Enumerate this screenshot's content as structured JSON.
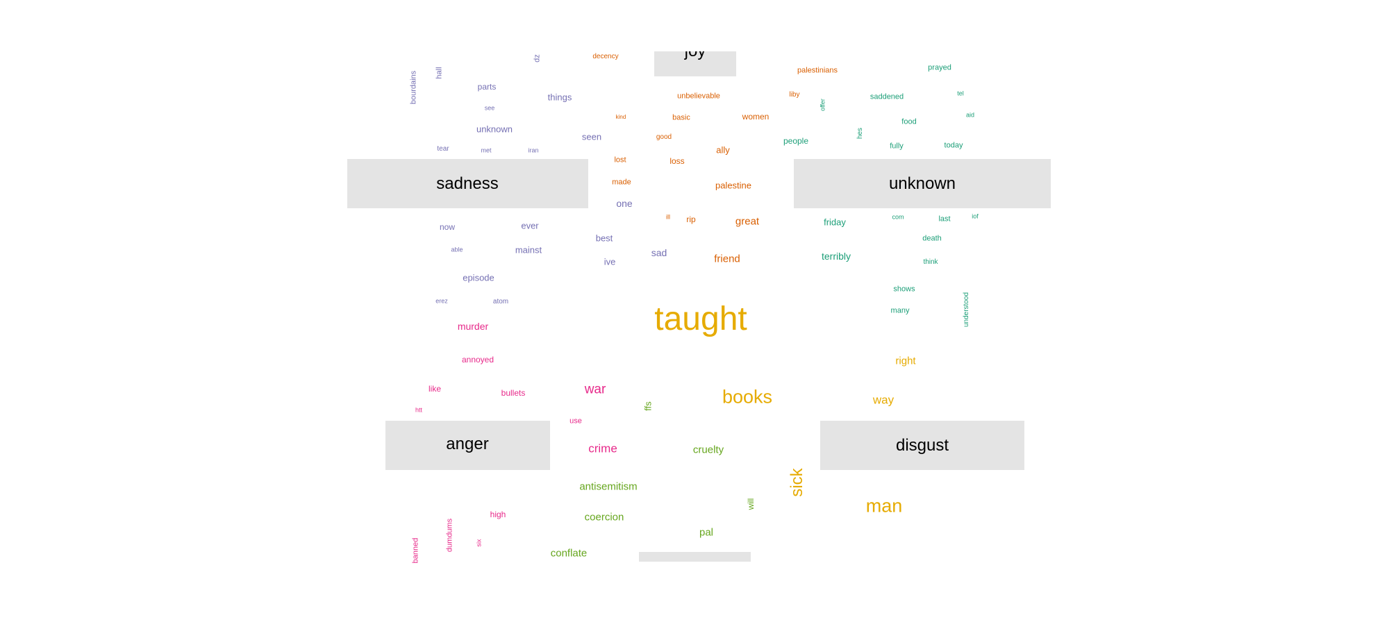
{
  "colors": {
    "sadness": "#7570b3",
    "joy": "#d95f02",
    "unknown": "#1b9e77",
    "anger": "#e7298a",
    "disgust": "#e6ab02",
    "fear": "#66a61e",
    "panel": "#e4e4e4"
  },
  "panels": [
    {
      "id": "joy",
      "label": "joy"
    },
    {
      "id": "sadness",
      "label": "sadness"
    },
    {
      "id": "unknown",
      "label": "unknown"
    },
    {
      "id": "anger",
      "label": "anger"
    },
    {
      "id": "disgust",
      "label": "disgust"
    },
    {
      "id": "fear",
      "label": ""
    }
  ],
  "words": [
    {
      "text": "dz",
      "group": "sadness"
    },
    {
      "text": "bourdains",
      "group": "sadness"
    },
    {
      "text": "hall",
      "group": "sadness"
    },
    {
      "text": "parts",
      "group": "sadness"
    },
    {
      "text": "things",
      "group": "sadness"
    },
    {
      "text": "see",
      "group": "sadness"
    },
    {
      "text": "unknown",
      "group": "sadness"
    },
    {
      "text": "seen",
      "group": "sadness"
    },
    {
      "text": "tear",
      "group": "sadness"
    },
    {
      "text": "met",
      "group": "sadness"
    },
    {
      "text": "iran",
      "group": "sadness"
    },
    {
      "text": "one",
      "group": "sadness"
    },
    {
      "text": "now",
      "group": "sadness"
    },
    {
      "text": "ever",
      "group": "sadness"
    },
    {
      "text": "best",
      "group": "sadness"
    },
    {
      "text": "able",
      "group": "sadness"
    },
    {
      "text": "mainst",
      "group": "sadness"
    },
    {
      "text": "sad",
      "group": "sadness"
    },
    {
      "text": "ive",
      "group": "sadness"
    },
    {
      "text": "episode",
      "group": "sadness"
    },
    {
      "text": "erez",
      "group": "sadness"
    },
    {
      "text": "atom",
      "group": "sadness"
    },
    {
      "text": "decency",
      "group": "joy"
    },
    {
      "text": "unbelievable",
      "group": "joy"
    },
    {
      "text": "kind",
      "group": "joy"
    },
    {
      "text": "basic",
      "group": "joy"
    },
    {
      "text": "women",
      "group": "joy"
    },
    {
      "text": "good",
      "group": "joy"
    },
    {
      "text": "ally",
      "group": "joy"
    },
    {
      "text": "lost",
      "group": "joy"
    },
    {
      "text": "loss",
      "group": "joy"
    },
    {
      "text": "made",
      "group": "joy"
    },
    {
      "text": "palestine",
      "group": "joy"
    },
    {
      "text": "ill",
      "group": "joy"
    },
    {
      "text": "rip",
      "group": "joy"
    },
    {
      "text": "great",
      "group": "joy"
    },
    {
      "text": "friend",
      "group": "joy"
    },
    {
      "text": "palestinians",
      "group": "joy"
    },
    {
      "text": "liby",
      "group": "joy"
    },
    {
      "text": "prayed",
      "group": "unknown"
    },
    {
      "text": "saddened",
      "group": "unknown"
    },
    {
      "text": "tel",
      "group": "unknown"
    },
    {
      "text": "offer",
      "group": "unknown"
    },
    {
      "text": "aid",
      "group": "unknown"
    },
    {
      "text": "food",
      "group": "unknown"
    },
    {
      "text": "hes",
      "group": "unknown"
    },
    {
      "text": "people",
      "group": "unknown"
    },
    {
      "text": "fully",
      "group": "unknown"
    },
    {
      "text": "today",
      "group": "unknown"
    },
    {
      "text": "friday",
      "group": "unknown"
    },
    {
      "text": "com",
      "group": "unknown"
    },
    {
      "text": "last",
      "group": "unknown"
    },
    {
      "text": "iof",
      "group": "unknown"
    },
    {
      "text": "death",
      "group": "unknown"
    },
    {
      "text": "terribly",
      "group": "unknown"
    },
    {
      "text": "think",
      "group": "unknown"
    },
    {
      "text": "shows",
      "group": "unknown"
    },
    {
      "text": "many",
      "group": "unknown"
    },
    {
      "text": "understood",
      "group": "unknown"
    },
    {
      "text": "taught",
      "group": "disgust"
    },
    {
      "text": "right",
      "group": "disgust"
    },
    {
      "text": "books",
      "group": "disgust"
    },
    {
      "text": "way",
      "group": "disgust"
    },
    {
      "text": "sick",
      "group": "disgust"
    },
    {
      "text": "man",
      "group": "disgust"
    },
    {
      "text": "murder",
      "group": "anger"
    },
    {
      "text": "annoyed",
      "group": "anger"
    },
    {
      "text": "like",
      "group": "anger"
    },
    {
      "text": "bullets",
      "group": "anger"
    },
    {
      "text": "war",
      "group": "anger"
    },
    {
      "text": "htt",
      "group": "anger"
    },
    {
      "text": "use",
      "group": "anger"
    },
    {
      "text": "crime",
      "group": "anger"
    },
    {
      "text": "high",
      "group": "anger"
    },
    {
      "text": "banned",
      "group": "anger"
    },
    {
      "text": "dumdums",
      "group": "anger"
    },
    {
      "text": "six",
      "group": "anger"
    },
    {
      "text": "ffs",
      "group": "fear"
    },
    {
      "text": "cruelty",
      "group": "fear"
    },
    {
      "text": "antisemitism",
      "group": "fear"
    },
    {
      "text": "will",
      "group": "fear"
    },
    {
      "text": "coercion",
      "group": "fear"
    },
    {
      "text": "pal",
      "group": "fear"
    },
    {
      "text": "conflate",
      "group": "fear"
    }
  ]
}
